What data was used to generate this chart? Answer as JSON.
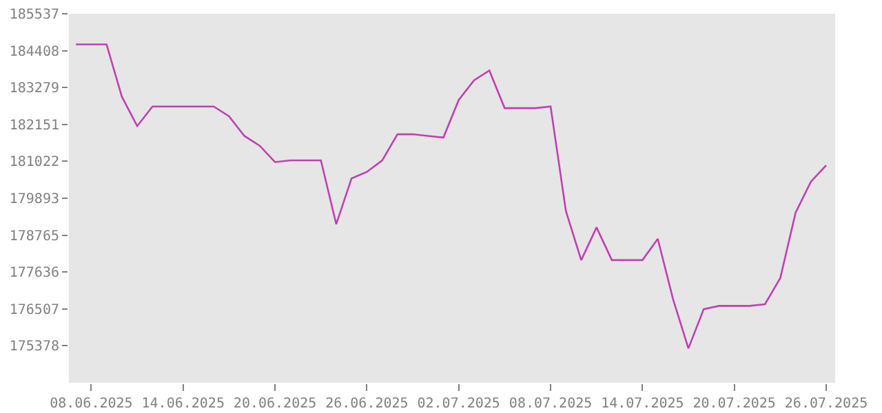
{
  "chart_data": {
    "type": "line",
    "x": [
      "2025-06-07",
      "2025-06-08",
      "2025-06-09",
      "2025-06-10",
      "2025-06-11",
      "2025-06-12",
      "2025-06-13",
      "2025-06-14",
      "2025-06-15",
      "2025-06-16",
      "2025-06-17",
      "2025-06-18",
      "2025-06-19",
      "2025-06-20",
      "2025-06-21",
      "2025-06-22",
      "2025-06-23",
      "2025-06-24",
      "2025-06-25",
      "2025-06-26",
      "2025-06-27",
      "2025-06-28",
      "2025-06-29",
      "2025-06-30",
      "2025-07-01",
      "2025-07-02",
      "2025-07-03",
      "2025-07-04",
      "2025-07-05",
      "2025-07-06",
      "2025-07-07",
      "2025-07-08",
      "2025-07-09",
      "2025-07-10",
      "2025-07-11",
      "2025-07-12",
      "2025-07-13",
      "2025-07-14",
      "2025-07-15",
      "2025-07-16",
      "2025-07-17",
      "2025-07-18",
      "2025-07-19",
      "2025-07-20",
      "2025-07-21",
      "2025-07-22",
      "2025-07-23",
      "2025-07-24",
      "2025-07-25",
      "2025-07-26"
    ],
    "series": [
      {
        "color": "#c040b0",
        "values": [
          184600,
          184600,
          184600,
          183000,
          182100,
          182700,
          182700,
          182700,
          182700,
          182700,
          182400,
          181800,
          181500,
          181000,
          181050,
          181050,
          181050,
          179100,
          180500,
          180700,
          181050,
          181850,
          181850,
          181800,
          181750,
          182900,
          183500,
          183800,
          182650,
          182650,
          182650,
          182700,
          179500,
          178000,
          179000,
          178000,
          178000,
          178000,
          178650,
          176800,
          175300,
          176500,
          176600,
          176600,
          176600,
          176650,
          177450,
          179450,
          180400,
          180900
        ]
      }
    ],
    "xlim": [
      "2025-06-06T13:00",
      "2025-07-26T14:00"
    ],
    "xticks": [
      {
        "value": "2025-06-08",
        "label": "08.06.2025"
      },
      {
        "value": "2025-06-14",
        "label": "14.06.2025"
      },
      {
        "value": "2025-06-20",
        "label": "20.06.2025"
      },
      {
        "value": "2025-06-26",
        "label": "26.06.2025"
      },
      {
        "value": "2025-07-02",
        "label": "02.07.2025"
      },
      {
        "value": "2025-07-08",
        "label": "08.07.2025"
      },
      {
        "value": "2025-07-14",
        "label": "14.07.2025"
      },
      {
        "value": "2025-07-20",
        "label": "20.07.2025"
      },
      {
        "value": "2025-07-26",
        "label": "26.07.2025"
      }
    ],
    "ylim": [
      174249,
      185537
    ],
    "yticks": [
      175378,
      176507,
      177636,
      178765,
      179893,
      181022,
      182151,
      183279,
      184408,
      185537
    ],
    "grid": false,
    "marker": "none",
    "line_style": "solid"
  }
}
